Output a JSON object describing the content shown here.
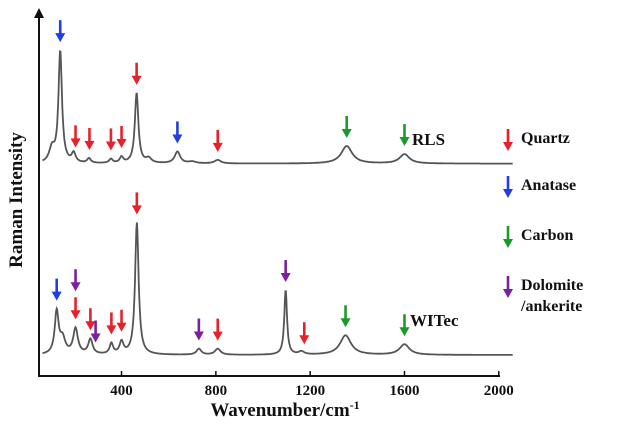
{
  "chart_data": {
    "type": "line",
    "title": "",
    "xlabel": "Wavenumber/cm",
    "xlabel_superscript": "-1",
    "ylabel": "Raman Intensity",
    "xlim": [
      50,
      2100
    ],
    "x_ticks": [
      400,
      800,
      1200,
      1600,
      2000
    ],
    "x_tick_labels": [
      "400",
      "800",
      "1200",
      "1600",
      "2000"
    ],
    "grid": false,
    "legend_position": "right",
    "legend": [
      {
        "key": "quartz",
        "label": "Quartz",
        "color": "#e8202a"
      },
      {
        "key": "anatase",
        "label": "Anatase",
        "color": "#1f3fe0"
      },
      {
        "key": "carbon",
        "label": "Carbon",
        "color": "#1a9a2a"
      },
      {
        "key": "dolomite",
        "label": "Dolomite\n/ankerite",
        "color": "#7a1fa0"
      }
    ],
    "series": [
      {
        "name": "RLS",
        "baseline": 0.02,
        "peaks": [
          {
            "x": 105,
            "h": 0.12,
            "w": 14
          },
          {
            "x": 140,
            "h": 0.95,
            "w": 9
          },
          {
            "x": 197,
            "h": 0.08,
            "w": 10
          },
          {
            "x": 262,
            "h": 0.04,
            "w": 9
          },
          {
            "x": 355,
            "h": 0.035,
            "w": 9
          },
          {
            "x": 400,
            "h": 0.05,
            "w": 9
          },
          {
            "x": 464,
            "h": 0.6,
            "w": 9
          },
          {
            "x": 515,
            "h": 0.04,
            "w": 14
          },
          {
            "x": 637,
            "h": 0.1,
            "w": 14
          },
          {
            "x": 700,
            "h": 0.015,
            "w": 18
          },
          {
            "x": 808,
            "h": 0.03,
            "w": 16
          },
          {
            "x": 1355,
            "h": 0.15,
            "w": 28
          },
          {
            "x": 1600,
            "h": 0.08,
            "w": 25
          }
        ],
        "markers": [
          {
            "type": "anatase",
            "x": 140
          },
          {
            "type": "quartz",
            "x": 205
          },
          {
            "type": "quartz",
            "x": 264
          },
          {
            "type": "quartz",
            "x": 355
          },
          {
            "type": "quartz",
            "x": 400
          },
          {
            "type": "quartz",
            "x": 464
          },
          {
            "type": "anatase",
            "x": 637
          },
          {
            "type": "quartz",
            "x": 808
          },
          {
            "type": "carbon",
            "x": 1355
          },
          {
            "type": "carbon",
            "x": 1600
          }
        ]
      },
      {
        "name": "WITec",
        "baseline": 0.02,
        "peaks": [
          {
            "x": 125,
            "h": 0.28,
            "w": 10
          },
          {
            "x": 150,
            "h": 0.1,
            "w": 14
          },
          {
            "x": 205,
            "h": 0.17,
            "w": 12
          },
          {
            "x": 268,
            "h": 0.1,
            "w": 11
          },
          {
            "x": 357,
            "h": 0.07,
            "w": 9
          },
          {
            "x": 400,
            "h": 0.08,
            "w": 10
          },
          {
            "x": 465,
            "h": 0.88,
            "w": 9
          },
          {
            "x": 728,
            "h": 0.04,
            "w": 12
          },
          {
            "x": 808,
            "h": 0.04,
            "w": 14
          },
          {
            "x": 1096,
            "h": 0.43,
            "w": 7
          },
          {
            "x": 1163,
            "h": 0.02,
            "w": 14
          },
          {
            "x": 1350,
            "h": 0.13,
            "w": 28
          },
          {
            "x": 1600,
            "h": 0.07,
            "w": 25
          }
        ],
        "markers": [
          {
            "type": "anatase",
            "x": 125
          },
          {
            "type": "quartz",
            "x": 205
          },
          {
            "type": "dolomite",
            "x": 205
          },
          {
            "type": "quartz",
            "x": 268
          },
          {
            "type": "dolomite",
            "x": 290
          },
          {
            "type": "quartz",
            "x": 357
          },
          {
            "type": "quartz",
            "x": 400
          },
          {
            "type": "quartz",
            "x": 465
          },
          {
            "type": "dolomite",
            "x": 728
          },
          {
            "type": "quartz",
            "x": 808
          },
          {
            "type": "dolomite",
            "x": 1096
          },
          {
            "type": "quartz",
            "x": 1175
          },
          {
            "type": "carbon",
            "x": 1350
          },
          {
            "type": "carbon",
            "x": 1600
          }
        ]
      }
    ]
  }
}
